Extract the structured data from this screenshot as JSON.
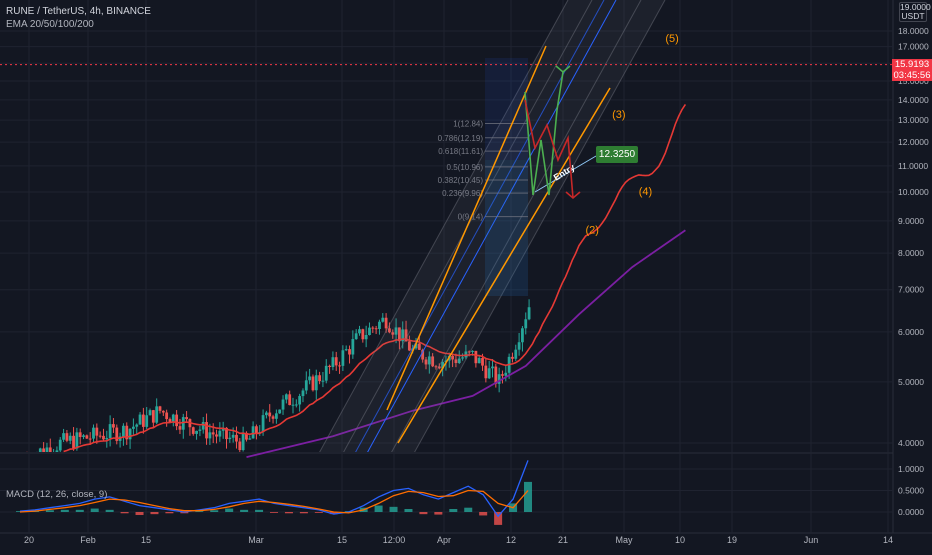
{
  "header": {
    "title": "RUNE / TetherUS, 4h, BINANCE",
    "ema_label": "EMA 20/50/100/200",
    "macd_label": "MACD (12, 26, close, 9)"
  },
  "price_axis": {
    "unit_line1": "19.0000",
    "unit_line2": "USDT"
  },
  "last_price": {
    "price": "15.9193",
    "countdown": "03:45:56"
  },
  "entry": {
    "value": "12.3250",
    "label": "Entry"
  },
  "colors": {
    "background": "#131722",
    "grid": "#1f2330",
    "candle_up": "#26a69a",
    "candle_down": "#ef5350",
    "ema20": "#e53935",
    "ema200": "#7b1fa2",
    "channel": "#ff9800",
    "regression": "#2962ff",
    "macd_line": "#2962ff",
    "signal_line": "#ff6d00",
    "up_arrow": "#4caf50",
    "down_arrow": "#f44336"
  },
  "chart_data": [
    {
      "type": "candlestick",
      "title": "RUNE / TetherUS, 4h, BINANCE",
      "y_scale": "log",
      "y_ticks": [
        "4.0000",
        "5.0000",
        "6.0000",
        "7.0000",
        "8.0000",
        "9.0000",
        "10.0000",
        "11.0000",
        "12.0000",
        "13.0000",
        "14.0000",
        "15.0000",
        "16.0000",
        "17.0000",
        "18.0000"
      ],
      "x_ticks": [
        "20",
        "Feb",
        "15",
        "Mar",
        "15",
        "12:00",
        "Apr",
        "12",
        "21",
        "May",
        "10",
        "19",
        "Jun",
        "14"
      ],
      "ylim": [
        3.8,
        19.5
      ],
      "price_path": [
        {
          "date": "2022-01-20",
          "close": 3.8
        },
        {
          "date": "2022-01-25",
          "close": 4.0
        },
        {
          "date": "2022-01-30",
          "close": 4.1
        },
        {
          "date": "2022-02-04",
          "close": 4.2
        },
        {
          "date": "2022-02-09",
          "close": 4.5
        },
        {
          "date": "2022-02-13",
          "close": 4.3
        },
        {
          "date": "2022-02-18",
          "close": 4.1
        },
        {
          "date": "2022-02-22",
          "close": 4.0
        },
        {
          "date": "2022-02-26",
          "close": 4.5
        },
        {
          "date": "2022-03-02",
          "close": 4.8
        },
        {
          "date": "2022-03-07",
          "close": 5.3
        },
        {
          "date": "2022-03-11",
          "close": 5.9
        },
        {
          "date": "2022-03-15",
          "close": 6.3
        },
        {
          "date": "2022-03-19",
          "close": 5.6
        },
        {
          "date": "2022-03-23",
          "close": 5.4
        },
        {
          "date": "2022-03-28",
          "close": 5.5
        },
        {
          "date": "2022-04-01",
          "close": 5.0
        },
        {
          "date": "2022-04-03",
          "close": 5.6
        },
        {
          "date": "2022-04-05",
          "close": 6.4
        },
        {
          "date": "2022-04-07",
          "close": 7.3
        },
        {
          "date": "2022-04-09",
          "close": 8.2
        },
        {
          "date": "2022-04-11",
          "close": 9.2
        },
        {
          "date": "2022-04-13",
          "close": 10.3
        },
        {
          "date": "2022-04-15",
          "close": 8.9
        },
        {
          "date": "2022-04-17",
          "close": 10.5
        },
        {
          "date": "2022-04-19",
          "close": 12.7
        },
        {
          "date": "2022-04-21",
          "close": 11.5
        },
        {
          "date": "2022-04-23",
          "close": 10.2
        },
        {
          "date": "2022-04-25",
          "close": 12.5
        },
        {
          "date": "2022-04-27",
          "close": 16.8
        },
        {
          "date": "2022-04-29",
          "close": 15.9
        }
      ],
      "ema200_path": [
        {
          "date": "2022-02-22",
          "value": 3.8
        },
        {
          "date": "2022-03-07",
          "value": 4.1
        },
        {
          "date": "2022-03-19",
          "value": 4.5
        },
        {
          "date": "2022-03-28",
          "value": 4.75
        },
        {
          "date": "2022-04-05",
          "value": 5.3
        },
        {
          "date": "2022-04-13",
          "value": 6.4
        },
        {
          "date": "2022-04-21",
          "value": 7.6
        },
        {
          "date": "2022-04-29",
          "value": 8.7
        }
      ],
      "annotations": {
        "fib_levels": [
          {
            "label": "1(12.84)",
            "value": 12.84
          },
          {
            "label": "0.786(12.19)",
            "value": 12.19
          },
          {
            "label": "0.618(11.61)",
            "value": 11.61
          },
          {
            "label": "0.5(10.96)",
            "value": 10.96
          },
          {
            "label": "0.382(10.45)",
            "value": 10.45
          },
          {
            "label": "0.236(9.96)",
            "value": 9.96
          },
          {
            "label": "0(9.14)",
            "value": 9.14
          }
        ],
        "waves": [
          {
            "label": "(2)",
            "date": "2022-04-15",
            "price": 8.6
          },
          {
            "label": "(3)",
            "date": "2022-04-19",
            "price": 13.1
          },
          {
            "label": "(4)",
            "date": "2022-04-23",
            "price": 9.9
          },
          {
            "label": "(5)",
            "date": "2022-04-27",
            "price": 17.3
          }
        ],
        "entry_price": 12.325,
        "last_price": 15.9193
      }
    },
    {
      "type": "line",
      "title": "MACD (12, 26, close, 9)",
      "y_ticks": [
        "1.0000",
        "0.5000",
        "0.0000"
      ],
      "ylim": [
        -0.3,
        1.3
      ],
      "series": [
        {
          "name": "MACD",
          "values": [
            0.02,
            0.05,
            0.1,
            0.15,
            0.2,
            0.3,
            0.35,
            0.25,
            0.15,
            0.1,
            0.05,
            0.0,
            0.05,
            0.1,
            0.2,
            0.25,
            0.3,
            0.2,
            0.15,
            0.1,
            0.05,
            -0.05,
            0.0,
            0.15,
            0.35,
            0.5,
            0.55,
            0.4,
            0.3,
            0.45,
            0.6,
            0.4,
            -0.1,
            0.3,
            1.2
          ]
        },
        {
          "name": "Signal",
          "values": [
            0.0,
            0.02,
            0.06,
            0.1,
            0.15,
            0.22,
            0.3,
            0.28,
            0.22,
            0.15,
            0.08,
            0.03,
            0.03,
            0.06,
            0.12,
            0.2,
            0.25,
            0.22,
            0.18,
            0.13,
            0.07,
            0.0,
            -0.02,
            0.05,
            0.2,
            0.38,
            0.48,
            0.45,
            0.36,
            0.38,
            0.5,
            0.48,
            0.2,
            0.1,
            0.5
          ]
        }
      ]
    }
  ]
}
